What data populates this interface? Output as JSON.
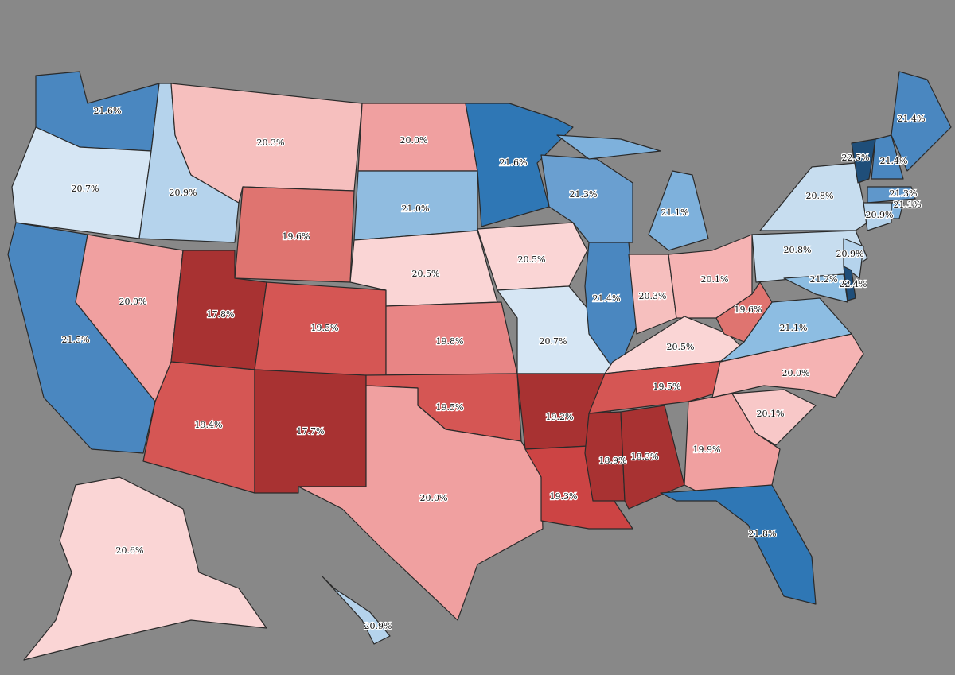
{
  "chart_data": {
    "type": "choropleth",
    "values": [
      21.6,
      20.7,
      21.5,
      20.9,
      20.3,
      19.6,
      20.0,
      17.8,
      19.4,
      19.5,
      17.7,
      20.0,
      21.0,
      20.5,
      19.8,
      19.5,
      20.0,
      21.6,
      20.5,
      20.7,
      19.2,
      19.3,
      21.3,
      21.4,
      21.1,
      20.3,
      20.1,
      20.5,
      19.5,
      18.9,
      18.3,
      19.9,
      21.8,
      20.1,
      20.0,
      21.1,
      19.6,
      20.8,
      20.8,
      22.5,
      21.4,
      21.4,
      21.3,
      21.1,
      20.9,
      20.9,
      21.2,
      22.4,
      20.6,
      20.9
    ],
    "value_labels": [
      "21.6%",
      "20.7%",
      "21.5%",
      "20.9%",
      "20.3%",
      "19.6%",
      "20.0%",
      "17.8%",
      "19.4%",
      "19.5%",
      "17.7%",
      "20.0%",
      "21.0%",
      "20.5%",
      "19.8%",
      "19.5%",
      "20.0%",
      "21.6%",
      "20.5%",
      "20.7%",
      "19.2%",
      "19.3%",
      "21.3%",
      "21.4%",
      "21.1%",
      "20.3%",
      "20.1%",
      "20.5%",
      "19.5%",
      "18.9%",
      "18.3%",
      "19.9%",
      "21.8%",
      "20.1%",
      "20.0%",
      "21.1%",
      "19.6%",
      "20.8%",
      "20.8%",
      "22.5%",
      "21.4%",
      "21.4%",
      "21.3%",
      "21.1%",
      "20.9%",
      "20.9%",
      "21.2%",
      "22.4%",
      "20.6%",
      "20.9%"
    ],
    "colors": [
      "#4a87c0",
      "#d6e6f4",
      "#4a87c0",
      "#b5d3ec",
      "#f6bfbe",
      "#df7470",
      "#f0a0a0",
      "#a83232",
      "#d55654",
      "#d55654",
      "#a83232",
      "#f0a0a0",
      "#90bce0",
      "#fad5d5",
      "#e88585",
      "#d55654",
      "#f0a0a0",
      "#2f77b5",
      "#fad5d5",
      "#d6e6f4",
      "#a83232",
      "#cc4444",
      "#6a9fd0",
      "#4a87c0",
      "#7eb1dc",
      "#f6bfbe",
      "#f5b3b3",
      "#fad5d5",
      "#d55654",
      "#a83232",
      "#a83232",
      "#f0a0a0",
      "#2f77b5",
      "#f8c8c8",
      "#f5b3b3",
      "#8dbde2",
      "#df7470",
      "#c7ddef",
      "#c7ddef",
      "#1f4e79",
      "#4a87c0",
      "#4a87c0",
      "#5f97cb",
      "#7eb1dc",
      "#b5d3ec",
      "#b5d3ec",
      "#8dbde2",
      "#1f4e79",
      "#fad5d5",
      "#b5d3ec"
    ]
  }
}
